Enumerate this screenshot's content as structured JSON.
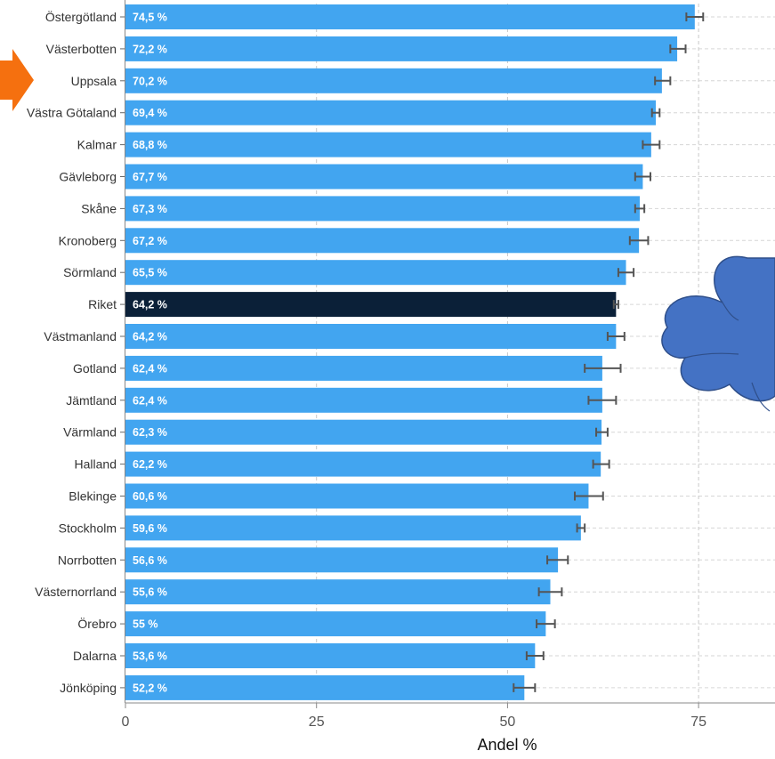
{
  "chart_data": {
    "type": "bar",
    "orientation": "horizontal",
    "categories": [
      "Östergötland",
      "Västerbotten",
      "Uppsala",
      "Västra Götaland",
      "Kalmar",
      "Gävleborg",
      "Skåne",
      "Kronoberg",
      "Sörmland",
      "Riket",
      "Västmanland",
      "Gotland",
      "Jämtland",
      "Värmland",
      "Halland",
      "Blekinge",
      "Stockholm",
      "Norrbotten",
      "Västernorrland",
      "Örebro",
      "Dalarna",
      "Jönköping"
    ],
    "values": [
      74.5,
      72.2,
      70.2,
      69.4,
      68.8,
      67.7,
      67.3,
      67.2,
      65.5,
      64.2,
      64.2,
      62.4,
      62.4,
      62.3,
      62.2,
      60.6,
      59.6,
      56.6,
      55.6,
      55,
      53.6,
      52.2
    ],
    "value_labels": [
      "74,5 %",
      "72,2 %",
      "70,2 %",
      "69,4 %",
      "68,8 %",
      "67,7 %",
      "67,3 %",
      "67,2 %",
      "65,5 %",
      "64,2 %",
      "64,2 %",
      "62,4 %",
      "62,4 %",
      "62,3 %",
      "62,2 %",
      "60,6 %",
      "59,6 %",
      "56,6 %",
      "55,6 %",
      "55 %",
      "53,6 %",
      "52,2 %"
    ],
    "error_low": [
      73.4,
      71.3,
      69.3,
      68.9,
      67.7,
      66.7,
      66.7,
      66.0,
      64.5,
      63.9,
      63.1,
      60.1,
      60.6,
      61.6,
      61.2,
      58.8,
      59.1,
      55.2,
      54.1,
      53.8,
      52.5,
      50.8
    ],
    "error_high": [
      75.6,
      73.3,
      71.3,
      69.9,
      69.9,
      68.7,
      67.9,
      68.4,
      66.5,
      64.5,
      65.3,
      64.8,
      64.2,
      63.1,
      63.3,
      62.5,
      60.1,
      57.9,
      57.1,
      56.2,
      54.7,
      53.6
    ],
    "highlight_category": "Riket",
    "xticks": [
      "0",
      "25",
      "50",
      "75"
    ],
    "xlim": [
      0,
      85
    ],
    "xlabel": "Andel %",
    "ylabel": "",
    "title": "",
    "grid": true,
    "colors": {
      "bar": "#42a5f0",
      "highlight": "#0b2038",
      "error": "#555555",
      "arrow": "#f5700f",
      "cloud": "#4472c4",
      "cloud_outline": "#2f4f8a"
    }
  },
  "annotations": {
    "arrow_target": "Uppsala",
    "shapes": [
      "arrow-icon",
      "cloud-icon"
    ]
  }
}
